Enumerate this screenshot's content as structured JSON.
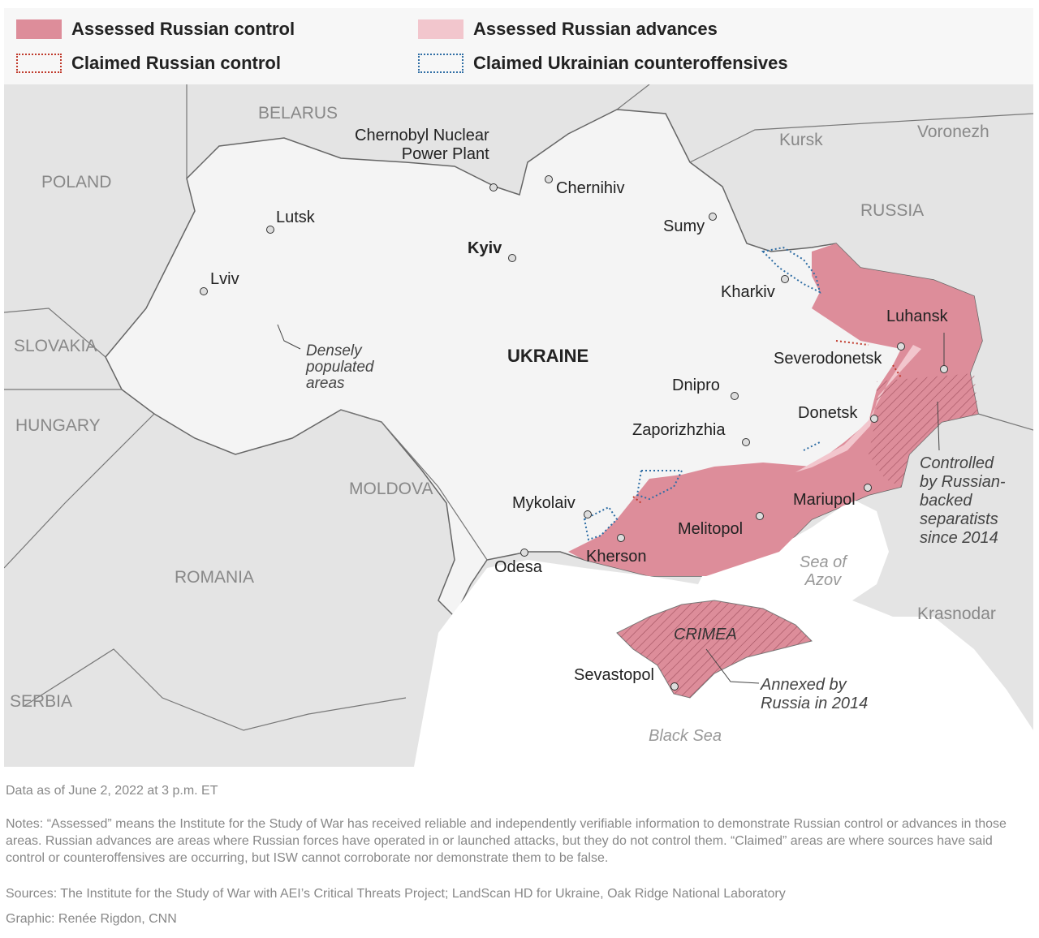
{
  "legend": {
    "assessed_control": "Assessed Russian control",
    "assessed_advances": "Assessed Russian advances",
    "claimed_control": "Claimed Russian control",
    "claimed_counteroffensives": "Claimed Ukrainian counteroffensives",
    "colors": {
      "control": "#dd8d9a",
      "advances": "#f2c6cd",
      "claimed_control": "#c0392b",
      "claimed_ukr": "#2e6da4"
    }
  },
  "map": {
    "countries": {
      "belarus": "BELARUS",
      "poland": "POLAND",
      "russia": "RUSSIA",
      "slovakia": "SLOVAKIA",
      "hungary": "HUNGARY",
      "moldova": "MOLDOVA",
      "romania": "ROMANIA",
      "serbia": "SERBIA",
      "ukraine": "UKRAINE"
    },
    "cities": {
      "chernobyl": "Chernobyl Nuclear\nPower Plant",
      "chernihiv": "Chernihiv",
      "kursk": "Kursk",
      "voronezh": "Voronezh",
      "lutsk": "Lutsk",
      "sumy": "Sumy",
      "kyiv": "Kyiv",
      "lviv": "Lviv",
      "kharkiv": "Kharkiv",
      "luhansk": "Luhansk",
      "severodonetsk": "Severodonetsk",
      "dnipro": "Dnipro",
      "donetsk": "Donetsk",
      "zaporizhzhia": "Zaporizhzhia",
      "mariupol": "Mariupol",
      "mykolaiv": "Mykolaiv",
      "melitopol": "Melitopol",
      "kherson": "Kherson",
      "odesa": "Odesa",
      "krasnodar": "Krasnodar",
      "sevastopol": "Sevastopol"
    },
    "regions": {
      "crimea": "CRIMEA",
      "sea_of_azov": "Sea of\nAzov",
      "black_sea": "Black Sea"
    },
    "annotations": {
      "densely": "Densely\npopulated\nareas",
      "separatists": "Controlled\nby Russian-\nbacked\nseparatists\nsince 2014",
      "annexed": "Annexed by\nRussia in 2014"
    }
  },
  "footer": {
    "date": "Data as of June 2, 2022 at 3 p.m. ET",
    "notes": "Notes: “Assessed” means the Institute for the Study of War has received reliable and independently verifiable information to demonstrate Russian control or advances in those areas. Russian advances are areas where Russian forces have operated in or launched attacks, but they do not control them. “Claimed” areas are where sources have said control or counteroffensives are occurring, but ISW cannot corroborate nor demonstrate them to be false.",
    "sources": "Sources: The Institute for the Study of War with AEI’s Critical Threats Project; LandScan HD for Ukraine, Oak Ridge National Laboratory",
    "graphic": "Graphic: Renée Rigdon, CNN"
  }
}
